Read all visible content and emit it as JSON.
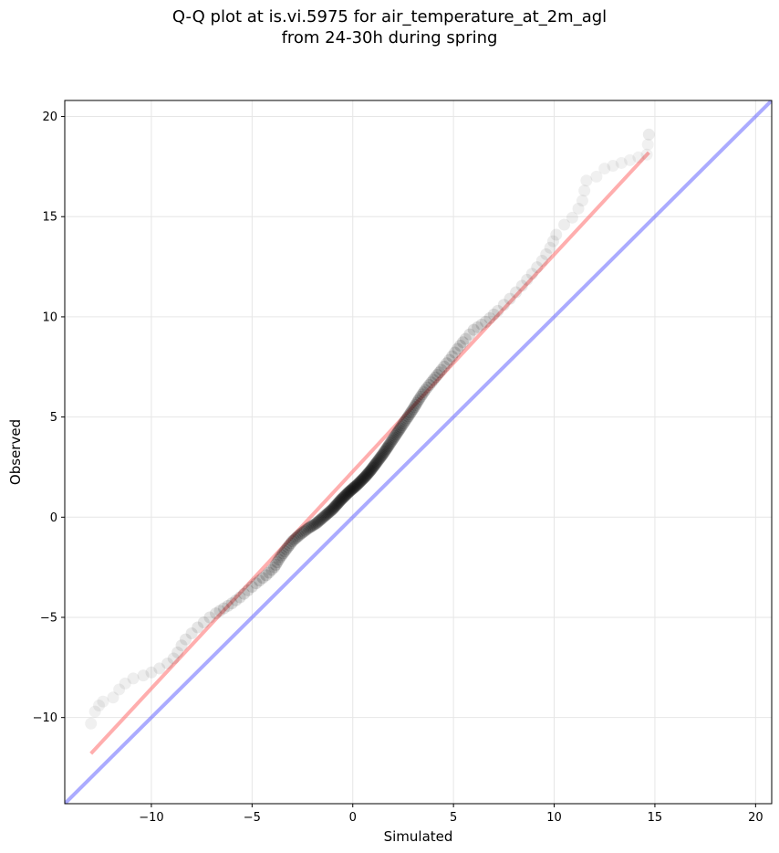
{
  "chart_data": {
    "type": "scatter",
    "title_lines": [
      "Q-Q plot at is.vi.5975 for air_temperature_at_2m_agl",
      "from 24-30h during spring"
    ],
    "xlabel": "Simulated",
    "ylabel": "Observed",
    "xlim": [
      -14.3,
      20.8
    ],
    "ylim": [
      -14.3,
      20.8
    ],
    "x_ticks": [
      -10,
      -5,
      0,
      5,
      10,
      15,
      20
    ],
    "y_ticks": [
      -10,
      -5,
      0,
      5,
      10,
      15,
      20
    ],
    "x_tick_labels": [
      "−10",
      "−5",
      "0",
      "5",
      "10",
      "15",
      "20"
    ],
    "y_tick_labels": [
      "−10",
      "−5",
      "0",
      "5",
      "10",
      "15",
      "20"
    ],
    "grid": true,
    "colors": {
      "points": "#000000",
      "fit_line": "#ff6b6b",
      "identity_line": "#6666ff",
      "grid": "#e6e6e6"
    },
    "identity_line": {
      "x": [
        -14.3,
        20.8
      ],
      "y": [
        -14.3,
        20.8
      ]
    },
    "fit_line": {
      "x": [
        -13.0,
        14.7
      ],
      "y": [
        -11.8,
        18.2
      ]
    },
    "quantiles": [
      [
        -13.0,
        -10.3
      ],
      [
        -12.8,
        -9.7
      ],
      [
        -12.6,
        -9.4
      ],
      [
        -12.4,
        -9.2
      ],
      [
        -11.9,
        -9.0
      ],
      [
        -11.6,
        -8.6
      ],
      [
        -11.3,
        -8.3
      ],
      [
        -10.9,
        -8.05
      ],
      [
        -10.4,
        -7.9
      ],
      [
        -10.0,
        -7.75
      ],
      [
        -9.6,
        -7.55
      ],
      [
        -9.2,
        -7.3
      ],
      [
        -8.9,
        -7.05
      ],
      [
        -8.7,
        -6.75
      ],
      [
        -8.5,
        -6.4
      ],
      [
        -8.3,
        -6.1
      ],
      [
        -8.0,
        -5.8
      ],
      [
        -7.7,
        -5.5
      ],
      [
        -7.4,
        -5.25
      ],
      [
        -7.1,
        -5.0
      ],
      [
        -6.8,
        -4.8
      ],
      [
        -6.4,
        -4.55
      ],
      [
        -6.0,
        -4.3
      ],
      [
        -5.6,
        -4.0
      ],
      [
        -5.2,
        -3.65
      ],
      [
        -4.8,
        -3.3
      ],
      [
        -4.3,
        -2.9
      ],
      [
        -3.9,
        -2.5
      ],
      [
        -3.6,
        -2.0
      ],
      [
        -3.3,
        -1.6
      ],
      [
        -3.0,
        -1.2
      ],
      [
        -2.6,
        -0.85
      ],
      [
        -2.2,
        -0.55
      ],
      [
        -1.8,
        -0.3
      ],
      [
        -1.4,
        0.05
      ],
      [
        -1.0,
        0.4
      ],
      [
        -0.6,
        0.85
      ],
      [
        -0.2,
        1.25
      ],
      [
        0.2,
        1.6
      ],
      [
        0.6,
        2.0
      ],
      [
        0.9,
        2.35
      ],
      [
        1.2,
        2.75
      ],
      [
        1.5,
        3.15
      ],
      [
        1.8,
        3.6
      ],
      [
        2.1,
        4.05
      ],
      [
        2.4,
        4.5
      ],
      [
        2.7,
        4.95
      ],
      [
        3.0,
        5.4
      ],
      [
        3.3,
        5.9
      ],
      [
        3.6,
        6.35
      ],
      [
        4.0,
        6.85
      ],
      [
        4.4,
        7.35
      ],
      [
        4.8,
        7.85
      ],
      [
        5.2,
        8.4
      ],
      [
        5.6,
        8.9
      ],
      [
        6.0,
        9.35
      ],
      [
        6.6,
        9.75
      ],
      [
        7.2,
        10.3
      ],
      [
        7.8,
        10.9
      ],
      [
        8.4,
        11.55
      ],
      [
        8.9,
        12.15
      ],
      [
        9.4,
        12.8
      ],
      [
        9.8,
        13.45
      ],
      [
        10.1,
        14.1
      ],
      [
        10.5,
        14.6
      ],
      [
        10.9,
        14.95
      ],
      [
        11.2,
        15.4
      ],
      [
        11.4,
        15.8
      ],
      [
        11.5,
        16.3
      ],
      [
        11.6,
        16.8
      ],
      [
        12.1,
        17.0
      ],
      [
        12.5,
        17.4
      ],
      [
        14.6,
        18.1
      ],
      [
        14.7,
        19.1
      ]
    ]
  }
}
